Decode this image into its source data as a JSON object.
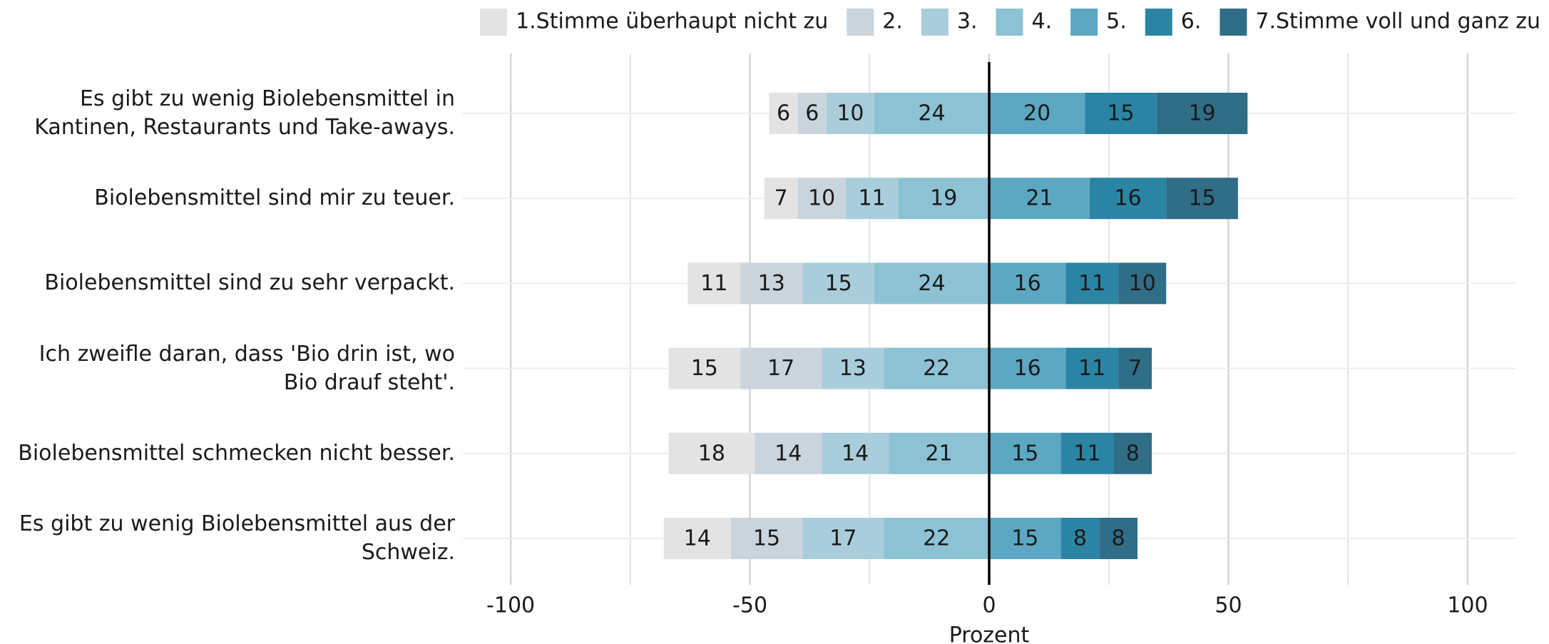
{
  "chart_data": {
    "type": "diverging_stacked_bar",
    "x_label": "Prozent",
    "categories": [
      "Es gibt zu wenig Biolebensmittel in\nKantinen, Restaurants und Take-aways.",
      "Biolebensmittel sind mir zu teuer.",
      "Biolebensmittel sind zu sehr verpackt.",
      "Ich zweifle daran, dass 'Bio drin ist, wo\nBio drauf steht'.",
      "Biolebensmittel schmecken nicht besser.",
      "Es gibt zu wenig Biolebensmittel aus der\nSchweiz."
    ],
    "series": [
      {
        "name": "1.Stimme überhaupt nicht zu",
        "color": "#e3e3e3",
        "side": "left",
        "values": [
          6,
          7,
          11,
          15,
          18,
          14
        ]
      },
      {
        "name": "2.",
        "color": "#c9d4dc",
        "side": "left",
        "values": [
          6,
          10,
          13,
          17,
          14,
          15
        ]
      },
      {
        "name": "3.",
        "color": "#a9cddb",
        "side": "left",
        "values": [
          10,
          11,
          15,
          13,
          14,
          17
        ]
      },
      {
        "name": "4.",
        "color": "#8cc2d4",
        "side": "left",
        "values": [
          24,
          19,
          24,
          22,
          21,
          22
        ]
      },
      {
        "name": "5.",
        "color": "#5ca7c2",
        "side": "right",
        "values": [
          20,
          21,
          16,
          16,
          15,
          15
        ]
      },
      {
        "name": "6.",
        "color": "#2b84a3",
        "side": "right",
        "values": [
          15,
          16,
          11,
          11,
          11,
          8
        ]
      },
      {
        "name": "7.Stimme voll und ganz zu",
        "color": "#306d87",
        "side": "right",
        "values": [
          19,
          15,
          10,
          7,
          8,
          8
        ]
      }
    ],
    "xlim": [
      -110,
      110
    ],
    "xticks": [
      -100,
      -50,
      0,
      50,
      100
    ],
    "minor_xticks": [
      -75,
      -25,
      25,
      75
    ],
    "grid": true,
    "legend": "top"
  }
}
